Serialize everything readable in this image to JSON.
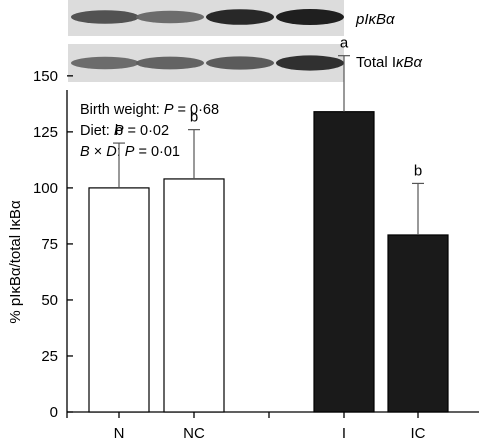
{
  "blot": {
    "rows": [
      {
        "label_main": "pI",
        "label_kappa": "κ",
        "label_b": "B",
        "label_alpha": "α",
        "intensities": [
          0.7,
          0.55,
          0.95,
          1.0
        ]
      },
      {
        "label_main": "Total I",
        "label_kappa": "κ",
        "label_b": "B",
        "label_alpha": "α",
        "intensities": [
          0.55,
          0.6,
          0.65,
          0.9
        ]
      }
    ]
  },
  "stats": [
    {
      "prefix": "Birth weight: ",
      "p": "P",
      "value": " = 0·68"
    },
    {
      "prefix": "Diet: ",
      "p": "P",
      "value": " = 0·02"
    },
    {
      "prefix_b": "B",
      "times": " × ",
      "prefix_d": "D",
      "colon": ": ",
      "p": "P",
      "value": " = 0·01"
    }
  ],
  "ylabel": {
    "prefix": "% pI",
    "kappa": "κ",
    "mid": "B",
    "alpha": "α",
    "sep": "/total I",
    "kappa2": "κ",
    "mid2": "B",
    "alpha2": "α"
  },
  "chart_data": {
    "type": "bar",
    "categories": [
      "N",
      "NC",
      "I",
      "IC"
    ],
    "values": [
      100,
      104,
      134,
      79
    ],
    "errors": [
      20,
      22,
      25,
      23
    ],
    "fills": [
      "#ffffff",
      "#ffffff",
      "#1a1a1a",
      "#1a1a1a"
    ],
    "significance": [
      "b",
      "b",
      "a",
      "b"
    ],
    "ylim": [
      0,
      150
    ],
    "yticks": [
      0,
      25,
      50,
      75,
      100,
      125,
      150
    ]
  }
}
